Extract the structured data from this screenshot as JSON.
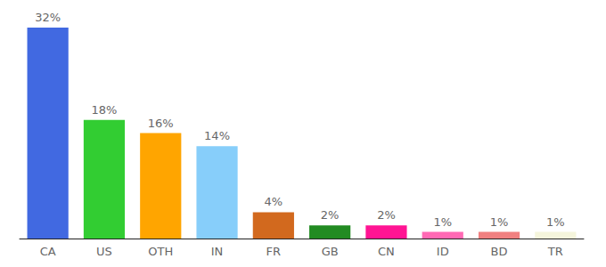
{
  "chart_data": {
    "type": "bar",
    "categories": [
      "CA",
      "US",
      "OTH",
      "IN",
      "FR",
      "GB",
      "CN",
      "ID",
      "BD",
      "TR"
    ],
    "values": [
      32,
      18,
      16,
      14,
      4,
      2,
      2,
      1,
      1,
      1
    ],
    "value_labels": [
      "32%",
      "18%",
      "16%",
      "14%",
      "4%",
      "2%",
      "2%",
      "1%",
      "1%",
      "1%"
    ],
    "colors": [
      "#4169e1",
      "#32cd32",
      "#ffa500",
      "#87cefa",
      "#d2691e",
      "#228b22",
      "#ff1493",
      "#ff69b4",
      "#f08080",
      "#f5f5dc"
    ],
    "ylim": [
      0,
      32
    ],
    "grid": false,
    "data_labels": true,
    "tick_labels": "x"
  }
}
